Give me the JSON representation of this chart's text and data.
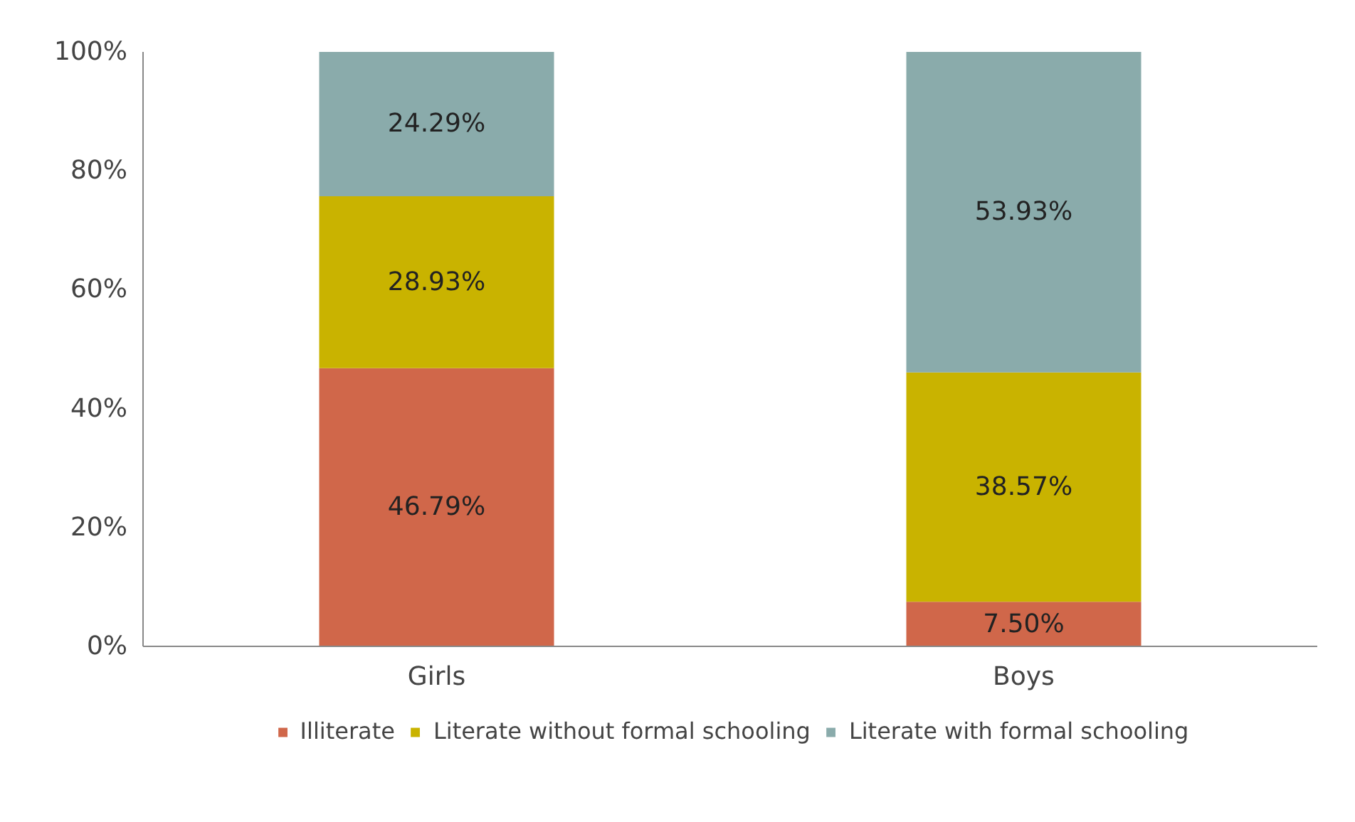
{
  "chart_data": {
    "type": "bar",
    "stacked": true,
    "categories": [
      "Girls",
      "Boys"
    ],
    "series": [
      {
        "name": "Illiterate",
        "color": "#d0674a",
        "values": [
          46.79,
          7.5
        ],
        "value_labels": [
          "46.79%",
          "7.50%"
        ]
      },
      {
        "name": "Literate without formal schooling",
        "color": "#c9b300",
        "values": [
          28.93,
          38.57
        ],
        "value_labels": [
          "28.93%",
          "38.57%"
        ]
      },
      {
        "name": "Literate with formal schooling",
        "color": "#8aabab",
        "values": [
          24.29,
          53.93
        ],
        "value_labels": [
          "24.29%",
          "53.93%"
        ]
      }
    ],
    "ylim": [
      0,
      100
    ],
    "yticks": [
      {
        "value": 0,
        "label": "0%"
      },
      {
        "value": 20,
        "label": "20%"
      },
      {
        "value": 40,
        "label": "40%"
      },
      {
        "value": 60,
        "label": "60%"
      },
      {
        "value": 80,
        "label": "80%"
      },
      {
        "value": 100,
        "label": "100%"
      }
    ],
    "grid": false,
    "legend": "bottom"
  }
}
